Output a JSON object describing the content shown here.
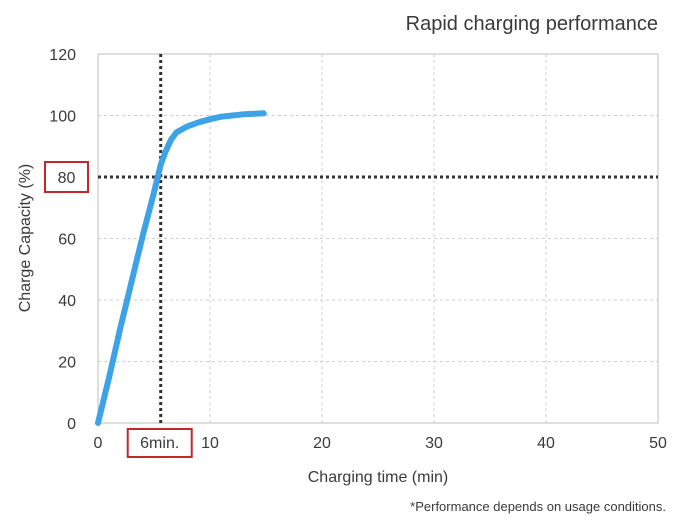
{
  "chart_data": {
    "type": "line",
    "title": "Rapid charging performance",
    "xlabel": "Charging time (min)",
    "ylabel": "Charge Capacity (%)",
    "footnote": "*Performance depends on usage conditions.",
    "xlim": [
      0,
      50
    ],
    "ylim": [
      0,
      120
    ],
    "xticks": [
      0,
      10,
      20,
      30,
      40,
      50
    ],
    "yticks": [
      0,
      20,
      40,
      60,
      80,
      100,
      120
    ],
    "grid": true,
    "series": [
      {
        "color": "#3da3e6",
        "x": [
          0,
          1,
          2,
          3,
          4,
          5,
          5.6,
          6,
          6.5,
          7,
          8,
          9,
          10,
          11,
          12,
          13,
          14,
          14.8
        ],
        "y": [
          0,
          15,
          31,
          46,
          61,
          75,
          84,
          88,
          92,
          94.5,
          96.5,
          97.8,
          98.8,
          99.6,
          100,
          100.4,
          100.6,
          100.7
        ]
      }
    ],
    "annotations": [
      {
        "axis": "y",
        "value": 80,
        "label": "80",
        "highlight_color": "#c0282d"
      },
      {
        "axis": "x",
        "value": 5.6,
        "label": "6min.",
        "highlight_color": "#c0282d"
      }
    ]
  }
}
